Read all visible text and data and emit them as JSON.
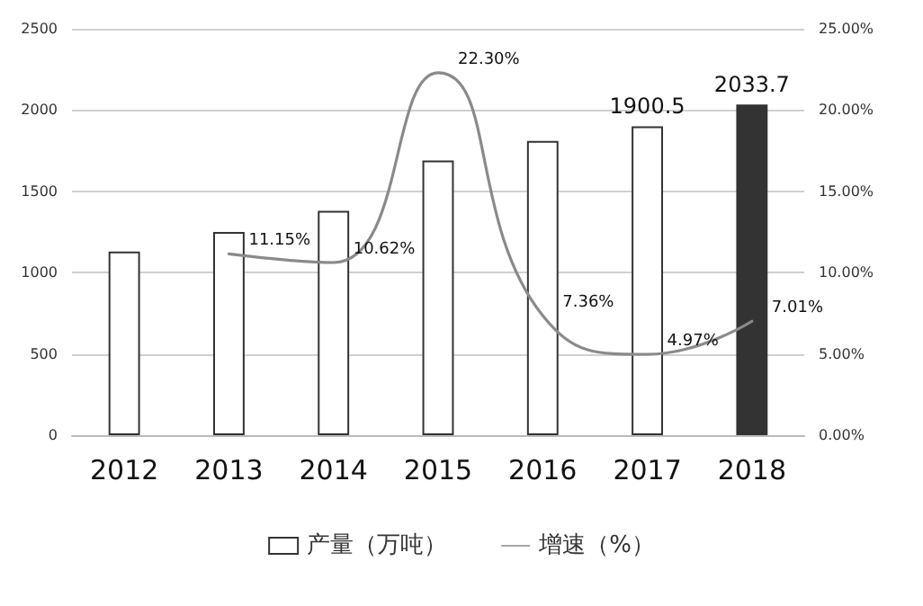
{
  "chart_data": {
    "type": "bar",
    "categories": [
      "2012",
      "2013",
      "2014",
      "2015",
      "2016",
      "2017",
      "2018"
    ],
    "series": [
      {
        "name": "产量（万吨）",
        "color": "#ffffff",
        "colors": [
          "#ffffff",
          "#ffffff",
          "#ffffff",
          "#ffffff",
          "#ffffff",
          "#ffffff",
          "#333333"
        ],
        "values": [
          1130,
          1250,
          1380,
          1690,
          1810,
          1900.5,
          2033.7
        ],
        "value_labels": [
          null,
          null,
          null,
          null,
          null,
          "1900.5",
          "2033.7"
        ]
      },
      {
        "name": "增速（%）",
        "type": "line",
        "axis": "y2",
        "color": "#8a8a8a",
        "values": [
          null,
          11.15,
          10.62,
          22.3,
          7.36,
          4.97,
          7.01
        ],
        "value_labels": [
          null,
          "11.15%",
          "10.62%",
          "22.30%",
          "7.36%",
          "4.97%",
          "7.01%"
        ]
      }
    ],
    "ylim": [
      0,
      2500
    ],
    "yticks": [
      0,
      500,
      1000,
      1500,
      2000,
      2500
    ],
    "y2lim": [
      0,
      25
    ],
    "y2ticks": [
      {
        "value": 0,
        "label": "0.00%"
      },
      {
        "value": 5,
        "label": "5.00%"
      },
      {
        "value": 10,
        "label": "10.00%"
      },
      {
        "value": 15,
        "label": "15.00%"
      },
      {
        "value": 20,
        "label": "20.00%"
      },
      {
        "value": 25,
        "label": "25.00%"
      }
    ],
    "grid": "y",
    "legend": "bottom",
    "marker": "none"
  }
}
